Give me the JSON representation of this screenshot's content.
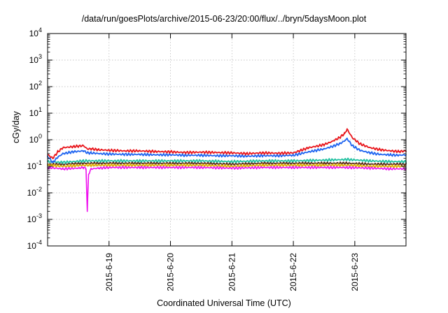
{
  "chart_data": {
    "type": "line",
    "title": "/data/run/goesPlots/archive/2015-06-23/20:00/flux/../bryn/5daysMoon.plot",
    "xlabel": "Coordinated Universal Time (UTC)",
    "ylabel": "cGy/day",
    "yscale": "log",
    "ylim": [
      0.0001,
      10000
    ],
    "ytick_labels": [
      {
        "base": "10",
        "exp": "-4"
      },
      {
        "base": "10",
        "exp": "-3"
      },
      {
        "base": "10",
        "exp": "-2"
      },
      {
        "base": "10",
        "exp": "-1"
      },
      {
        "base": "10",
        "exp": "0"
      },
      {
        "base": "10",
        "exp": "1"
      },
      {
        "base": "10",
        "exp": "2"
      },
      {
        "base": "10",
        "exp": "3"
      },
      {
        "base": "10",
        "exp": "4"
      }
    ],
    "xlim": [
      "2015-06-18 00:00",
      "2015-06-23 20:00"
    ],
    "xtick_labels": [
      "2015-6-19",
      "2015-6-20",
      "2015-6-21",
      "2015-6-22",
      "2015-6-23"
    ],
    "grid": true,
    "legend": false,
    "series": [
      {
        "color": "#e8141a",
        "x": [
          "2015-06-18 00:00",
          "2015-06-18 02:00",
          "2015-06-18 04:00",
          "2015-06-18 06:00",
          "2015-06-18 10:00",
          "2015-06-18 14:00",
          "2015-06-18 15:30",
          "2015-06-18 17:00",
          "2015-06-18 20:00",
          "2015-06-19 00:00",
          "2015-06-19 06:00",
          "2015-06-19 12:00",
          "2015-06-19 18:00",
          "2015-06-20 00:00",
          "2015-06-20 06:00",
          "2015-06-20 12:00",
          "2015-06-20 18:00",
          "2015-06-21 00:00",
          "2015-06-21 06:00",
          "2015-06-21 12:00",
          "2015-06-21 18:00",
          "2015-06-22 00:00",
          "2015-06-22 06:00",
          "2015-06-22 12:00",
          "2015-06-22 15:00",
          "2015-06-22 18:00",
          "2015-06-22 20:00",
          "2015-06-22 21:00",
          "2015-06-22 23:00",
          "2015-06-23 02:00",
          "2015-06-23 06:00",
          "2015-06-23 10:00",
          "2015-06-23 14:00",
          "2015-06-23 17:00",
          "2015-06-23 20:00"
        ],
        "y": [
          0.28,
          0.2,
          0.35,
          0.5,
          0.55,
          0.6,
          0.45,
          0.45,
          0.42,
          0.4,
          0.38,
          0.38,
          0.36,
          0.35,
          0.33,
          0.34,
          0.33,
          0.32,
          0.3,
          0.32,
          0.31,
          0.32,
          0.5,
          0.65,
          0.85,
          1.2,
          1.7,
          2.5,
          1.2,
          0.7,
          0.5,
          0.42,
          0.38,
          0.36,
          0.38
        ]
      },
      {
        "color": "#1e64f0",
        "x": [
          "2015-06-18 00:00",
          "2015-06-18 02:00",
          "2015-06-18 04:00",
          "2015-06-18 06:00",
          "2015-06-18 10:00",
          "2015-06-18 14:00",
          "2015-06-18 15:30",
          "2015-06-18 17:00",
          "2015-06-18 20:00",
          "2015-06-19 00:00",
          "2015-06-19 06:00",
          "2015-06-19 12:00",
          "2015-06-19 18:00",
          "2015-06-20 00:00",
          "2015-06-20 06:00",
          "2015-06-20 12:00",
          "2015-06-20 18:00",
          "2015-06-21 00:00",
          "2015-06-21 06:00",
          "2015-06-21 12:00",
          "2015-06-21 18:00",
          "2015-06-22 00:00",
          "2015-06-22 06:00",
          "2015-06-22 12:00",
          "2015-06-22 15:00",
          "2015-06-22 18:00",
          "2015-06-22 20:00",
          "2015-06-22 21:00",
          "2015-06-22 23:00",
          "2015-06-23 02:00",
          "2015-06-23 06:00",
          "2015-06-23 10:00",
          "2015-06-23 14:00",
          "2015-06-23 17:00",
          "2015-06-23 20:00"
        ],
        "y": [
          0.24,
          0.14,
          0.22,
          0.3,
          0.35,
          0.38,
          0.32,
          0.32,
          0.3,
          0.29,
          0.28,
          0.28,
          0.27,
          0.27,
          0.26,
          0.26,
          0.25,
          0.25,
          0.24,
          0.25,
          0.25,
          0.26,
          0.35,
          0.45,
          0.55,
          0.7,
          0.9,
          1.1,
          0.6,
          0.4,
          0.32,
          0.28,
          0.27,
          0.26,
          0.27
        ]
      },
      {
        "color": "#20c0a0",
        "x": [
          "2015-06-18 00:00",
          "2015-06-18 06:00",
          "2015-06-18 14:00",
          "2015-06-19 00:00",
          "2015-06-19 12:00",
          "2015-06-20 00:00",
          "2015-06-20 12:00",
          "2015-06-21 00:00",
          "2015-06-21 12:00",
          "2015-06-22 00:00",
          "2015-06-22 12:00",
          "2015-06-22 21:00",
          "2015-06-23 06:00",
          "2015-06-23 14:00",
          "2015-06-23 20:00"
        ],
        "y": [
          0.15,
          0.14,
          0.16,
          0.16,
          0.16,
          0.16,
          0.16,
          0.15,
          0.16,
          0.16,
          0.17,
          0.18,
          0.16,
          0.15,
          0.15
        ]
      },
      {
        "color": "#5a2a1a",
        "x": [
          "2015-06-18 00:00",
          "2015-06-18 06:00",
          "2015-06-18 14:00",
          "2015-06-19 00:00",
          "2015-06-19 12:00",
          "2015-06-20 00:00",
          "2015-06-20 12:00",
          "2015-06-21 00:00",
          "2015-06-21 12:00",
          "2015-06-22 00:00",
          "2015-06-22 12:00",
          "2015-06-22 21:00",
          "2015-06-23 06:00",
          "2015-06-23 14:00",
          "2015-06-23 20:00"
        ],
        "y": [
          0.12,
          0.12,
          0.13,
          0.13,
          0.13,
          0.13,
          0.13,
          0.12,
          0.13,
          0.13,
          0.13,
          0.13,
          0.12,
          0.12,
          0.12
        ]
      },
      {
        "color": "#e0b000",
        "x": [
          "2015-06-18 00:00",
          "2015-06-18 06:00",
          "2015-06-18 14:00",
          "2015-06-19 00:00",
          "2015-06-19 12:00",
          "2015-06-20 00:00",
          "2015-06-20 12:00",
          "2015-06-21 00:00",
          "2015-06-21 12:00",
          "2015-06-22 00:00",
          "2015-06-22 12:00",
          "2015-06-22 21:00",
          "2015-06-23 06:00",
          "2015-06-23 14:00",
          "2015-06-23 20:00"
        ],
        "y": [
          0.11,
          0.1,
          0.11,
          0.11,
          0.11,
          0.11,
          0.11,
          0.1,
          0.11,
          0.11,
          0.11,
          0.11,
          0.1,
          0.1,
          0.1
        ]
      },
      {
        "color": "#ee10ee",
        "x": [
          "2015-06-18 00:00",
          "2015-06-18 06:00",
          "2015-06-18 12:00",
          "2015-06-18 14:00",
          "2015-06-18 15:00",
          "2015-06-18 15:30",
          "2015-06-18 16:00",
          "2015-06-18 17:00",
          "2015-06-18 20:00",
          "2015-06-19 00:00",
          "2015-06-19 12:00",
          "2015-06-20 00:00",
          "2015-06-20 12:00",
          "2015-06-21 00:00",
          "2015-06-21 12:00",
          "2015-06-22 00:00",
          "2015-06-22 12:00",
          "2015-06-22 21:00",
          "2015-06-23 06:00",
          "2015-06-23 14:00",
          "2015-06-23 20:00"
        ],
        "y": [
          0.09,
          0.08,
          0.085,
          0.09,
          0.08,
          0.002,
          0.05,
          0.08,
          0.085,
          0.09,
          0.09,
          0.09,
          0.09,
          0.085,
          0.09,
          0.09,
          0.09,
          0.09,
          0.085,
          0.08,
          0.08
        ]
      }
    ]
  }
}
